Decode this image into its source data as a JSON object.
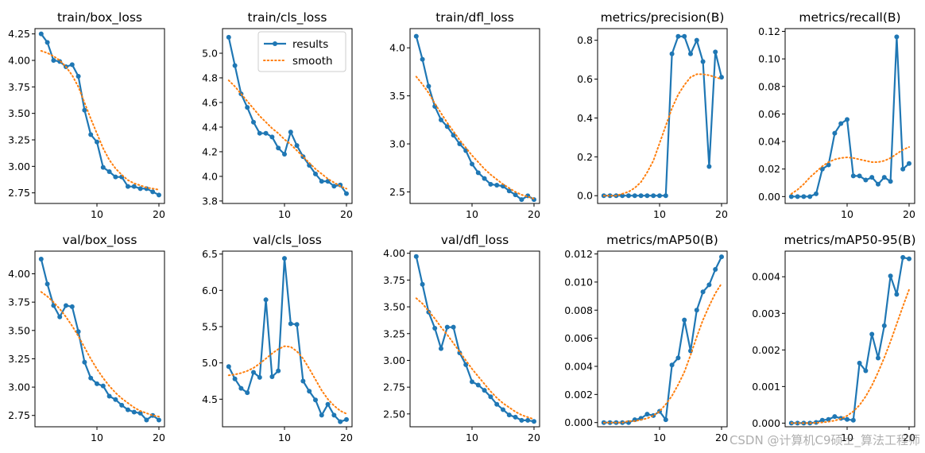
{
  "colors": {
    "results": "#1f77b4",
    "smooth": "#ff7f0e"
  },
  "legend": {
    "results_label": "results",
    "smooth_label": "smooth",
    "placement": "upper-right of train/cls_loss"
  },
  "watermark": "CSDN @计算机C9硕士_算法工程师",
  "chart_data": [
    {
      "type": "line",
      "title": "train/box_loss",
      "xlim": [
        0,
        20.9
      ],
      "ylim": [
        2.65,
        4.3
      ],
      "xticks": [
        10,
        20
      ],
      "yticks": [
        2.75,
        3.0,
        3.25,
        3.5,
        3.75,
        4.0,
        4.25
      ],
      "ytick_labels": [
        "2.75",
        "3.00",
        "3.25",
        "3.50",
        "3.75",
        "4.00",
        "4.25"
      ],
      "x": [
        1,
        2,
        3,
        4,
        5,
        6,
        7,
        8,
        9,
        10,
        11,
        12,
        13,
        14,
        15,
        16,
        17,
        18,
        19,
        20
      ],
      "results": [
        4.25,
        4.17,
        4.0,
        3.99,
        3.94,
        3.96,
        3.85,
        3.53,
        3.3,
        3.23,
        2.99,
        2.95,
        2.9,
        2.9,
        2.81,
        2.81,
        2.79,
        2.79,
        2.76,
        2.73
      ],
      "smooth": [
        4.09,
        4.07,
        4.04,
        4.0,
        3.94,
        3.86,
        3.75,
        3.6,
        3.45,
        3.31,
        3.17,
        3.06,
        2.98,
        2.92,
        2.87,
        2.84,
        2.82,
        2.8,
        2.79,
        2.78
      ]
    },
    {
      "type": "line",
      "title": "train/cls_loss",
      "xlim": [
        0,
        20.9
      ],
      "ylim": [
        3.78,
        5.2
      ],
      "xticks": [
        10,
        20
      ],
      "yticks": [
        3.8,
        4.0,
        4.2,
        4.4,
        4.6,
        4.8,
        5.0
      ],
      "ytick_labels": [
        "3.8",
        "4.0",
        "4.2",
        "4.4",
        "4.6",
        "4.8",
        "5.0"
      ],
      "legend": true,
      "x": [
        1,
        2,
        3,
        4,
        5,
        6,
        7,
        8,
        9,
        10,
        11,
        12,
        13,
        14,
        15,
        16,
        17,
        18,
        19,
        20
      ],
      "results": [
        5.13,
        4.9,
        4.67,
        4.56,
        4.44,
        4.35,
        4.35,
        4.32,
        4.23,
        4.18,
        4.36,
        4.25,
        4.16,
        4.09,
        4.02,
        3.96,
        3.96,
        3.92,
        3.93,
        3.86
      ],
      "smooth": [
        4.78,
        4.73,
        4.67,
        4.61,
        4.55,
        4.49,
        4.44,
        4.39,
        4.35,
        4.3,
        4.26,
        4.21,
        4.16,
        4.11,
        4.06,
        4.02,
        3.98,
        3.95,
        3.92,
        3.9
      ]
    },
    {
      "type": "line",
      "title": "train/dfl_loss",
      "xlim": [
        0,
        20.9
      ],
      "ylim": [
        2.38,
        4.2
      ],
      "xticks": [
        10,
        20
      ],
      "yticks": [
        2.5,
        3.0,
        3.5,
        4.0
      ],
      "ytick_labels": [
        "2.5",
        "3.0",
        "3.5",
        "4.0"
      ],
      "x": [
        1,
        2,
        3,
        4,
        5,
        6,
        7,
        8,
        9,
        10,
        11,
        12,
        13,
        14,
        15,
        16,
        17,
        18,
        19,
        20
      ],
      "results": [
        4.12,
        3.88,
        3.6,
        3.39,
        3.25,
        3.18,
        3.09,
        3.0,
        2.93,
        2.79,
        2.7,
        2.64,
        2.58,
        2.57,
        2.56,
        2.51,
        2.47,
        2.42,
        2.46,
        2.42
      ],
      "smooth": [
        3.7,
        3.62,
        3.53,
        3.42,
        3.32,
        3.22,
        3.13,
        3.04,
        2.96,
        2.88,
        2.81,
        2.74,
        2.68,
        2.63,
        2.58,
        2.54,
        2.5,
        2.47,
        2.45,
        2.43
      ]
    },
    {
      "type": "line",
      "title": "metrics/precision(B)",
      "xlim": [
        0,
        20.9
      ],
      "ylim": [
        -0.04,
        0.86
      ],
      "xticks": [
        10,
        20
      ],
      "yticks": [
        0.0,
        0.2,
        0.4,
        0.6,
        0.8
      ],
      "ytick_labels": [
        "0.0",
        "0.2",
        "0.4",
        "0.6",
        "0.8"
      ],
      "x": [
        1,
        2,
        3,
        4,
        5,
        6,
        7,
        8,
        9,
        10,
        11,
        12,
        13,
        14,
        15,
        16,
        17,
        18,
        19,
        20
      ],
      "results": [
        0,
        0,
        0,
        0,
        0,
        0,
        0,
        0,
        0,
        0,
        0,
        0.73,
        0.82,
        0.82,
        0.73,
        0.8,
        0.69,
        0.15,
        0.74,
        0.61
      ],
      "smooth": [
        0.0,
        0.0,
        0.0,
        0.01,
        0.02,
        0.04,
        0.07,
        0.12,
        0.18,
        0.27,
        0.36,
        0.45,
        0.52,
        0.57,
        0.61,
        0.625,
        0.625,
        0.62,
        0.61,
        0.6
      ]
    },
    {
      "type": "line",
      "title": "metrics/recall(B)",
      "xlim": [
        0,
        20.9
      ],
      "ylim": [
        -0.005,
        0.122
      ],
      "xticks": [
        10,
        20
      ],
      "yticks": [
        0.0,
        0.02,
        0.04,
        0.06,
        0.08,
        0.1,
        0.12
      ],
      "ytick_labels": [
        "0.00",
        "0.02",
        "0.04",
        "0.06",
        "0.08",
        "0.10",
        "0.12"
      ],
      "x": [
        1,
        2,
        3,
        4,
        5,
        6,
        7,
        8,
        9,
        10,
        11,
        12,
        13,
        14,
        15,
        16,
        17,
        18,
        19,
        20
      ],
      "results": [
        0,
        0,
        0,
        0,
        0.002,
        0.02,
        0.023,
        0.046,
        0.053,
        0.056,
        0.015,
        0.015,
        0.012,
        0.014,
        0.009,
        0.014,
        0.011,
        0.116,
        0.02,
        0.024
      ],
      "smooth": [
        0.002,
        0.005,
        0.009,
        0.014,
        0.018,
        0.022,
        0.025,
        0.027,
        0.028,
        0.0285,
        0.028,
        0.027,
        0.026,
        0.025,
        0.025,
        0.026,
        0.028,
        0.031,
        0.034,
        0.036
      ]
    },
    {
      "type": "line",
      "title": "val/box_loss",
      "xlim": [
        0,
        20.9
      ],
      "ylim": [
        2.65,
        4.2
      ],
      "xticks": [
        10,
        20
      ],
      "yticks": [
        2.75,
        3.0,
        3.25,
        3.5,
        3.75,
        4.0
      ],
      "ytick_labels": [
        "2.75",
        "3.00",
        "3.25",
        "3.50",
        "3.75",
        "4.00"
      ],
      "x": [
        1,
        2,
        3,
        4,
        5,
        6,
        7,
        8,
        9,
        10,
        11,
        12,
        13,
        14,
        15,
        16,
        17,
        18,
        19,
        20
      ],
      "results": [
        4.13,
        3.91,
        3.72,
        3.62,
        3.72,
        3.71,
        3.49,
        3.22,
        3.08,
        3.03,
        3.01,
        2.92,
        2.89,
        2.84,
        2.8,
        2.78,
        2.77,
        2.71,
        2.75,
        2.71
      ],
      "smooth": [
        3.84,
        3.8,
        3.75,
        3.69,
        3.62,
        3.54,
        3.45,
        3.35,
        3.25,
        3.16,
        3.08,
        3.01,
        2.95,
        2.9,
        2.86,
        2.82,
        2.79,
        2.77,
        2.75,
        2.74
      ]
    },
    {
      "type": "line",
      "title": "val/cls_loss",
      "xlim": [
        0,
        20.9
      ],
      "ylim": [
        4.12,
        6.54
      ],
      "xticks": [
        10,
        20
      ],
      "yticks": [
        4.5,
        5.0,
        5.5,
        6.0,
        6.5
      ],
      "ytick_labels": [
        "4.5",
        "5.0",
        "5.5",
        "6.0",
        "6.5"
      ],
      "x": [
        1,
        2,
        3,
        4,
        5,
        6,
        7,
        8,
        9,
        10,
        11,
        12,
        13,
        14,
        15,
        16,
        17,
        18,
        19,
        20
      ],
      "results": [
        4.95,
        4.78,
        4.65,
        4.59,
        4.87,
        4.8,
        5.87,
        4.81,
        4.89,
        6.44,
        5.54,
        5.53,
        4.75,
        4.61,
        4.49,
        4.28,
        4.43,
        4.28,
        4.19,
        4.22
      ],
      "smooth": [
        4.83,
        4.84,
        4.86,
        4.89,
        4.93,
        4.99,
        5.06,
        5.13,
        5.19,
        5.23,
        5.22,
        5.16,
        5.06,
        4.92,
        4.77,
        4.62,
        4.5,
        4.41,
        4.34,
        4.3
      ]
    },
    {
      "type": "line",
      "title": "val/dfl_loss",
      "xlim": [
        0,
        20.9
      ],
      "ylim": [
        2.38,
        4.02
      ],
      "xticks": [
        10,
        20
      ],
      "yticks": [
        2.5,
        2.75,
        3.0,
        3.25,
        3.5,
        3.75,
        4.0
      ],
      "ytick_labels": [
        "2.50",
        "2.75",
        "3.00",
        "3.25",
        "3.50",
        "3.75",
        "4.00"
      ],
      "x": [
        1,
        2,
        3,
        4,
        5,
        6,
        7,
        8,
        9,
        10,
        11,
        12,
        13,
        14,
        15,
        16,
        17,
        18,
        19,
        20
      ],
      "results": [
        3.97,
        3.71,
        3.45,
        3.3,
        3.11,
        3.31,
        3.31,
        3.07,
        2.96,
        2.8,
        2.77,
        2.72,
        2.66,
        2.59,
        2.54,
        2.49,
        2.47,
        2.44,
        2.44,
        2.43
      ],
      "smooth": [
        3.58,
        3.53,
        3.46,
        3.39,
        3.31,
        3.24,
        3.16,
        3.08,
        3.0,
        2.92,
        2.85,
        2.78,
        2.71,
        2.65,
        2.6,
        2.56,
        2.52,
        2.49,
        2.47,
        2.45
      ]
    },
    {
      "type": "line",
      "title": "metrics/mAP50(B)",
      "xlim": [
        0,
        20.9
      ],
      "ylim": [
        -0.0003,
        0.0122
      ],
      "xticks": [
        10,
        20
      ],
      "yticks": [
        0.0,
        0.002,
        0.004,
        0.006,
        0.008,
        0.01,
        0.012
      ],
      "ytick_labels": [
        "0.000",
        "0.002",
        "0.004",
        "0.006",
        "0.008",
        "0.010",
        "0.012"
      ],
      "x": [
        1,
        2,
        3,
        4,
        5,
        6,
        7,
        8,
        9,
        10,
        11,
        12,
        13,
        14,
        15,
        16,
        17,
        18,
        19,
        20
      ],
      "results": [
        0,
        0,
        0,
        0,
        0,
        0.0002,
        0.0003,
        0.0006,
        0.0005,
        0.0008,
        0.0002,
        0.0041,
        0.0046,
        0.0073,
        0.0051,
        0.008,
        0.0093,
        0.0098,
        0.0109,
        0.0118
      ],
      "smooth": [
        0,
        0,
        0,
        0,
        0.0001,
        0.0001,
        0.0002,
        0.0003,
        0.0005,
        0.0008,
        0.0013,
        0.0019,
        0.0027,
        0.0036,
        0.0048,
        0.0061,
        0.0073,
        0.0083,
        0.0092,
        0.0099
      ]
    },
    {
      "type": "line",
      "title": "metrics/mAP50-95(B)",
      "xlim": [
        0,
        20.9
      ],
      "ylim": [
        -0.0001,
        0.0047
      ],
      "xticks": [
        10,
        20
      ],
      "yticks": [
        0.0,
        0.001,
        0.002,
        0.003,
        0.004
      ],
      "ytick_labels": [
        "0.000",
        "0.001",
        "0.002",
        "0.003",
        "0.004"
      ],
      "x": [
        1,
        2,
        3,
        4,
        5,
        6,
        7,
        8,
        9,
        10,
        11,
        12,
        13,
        14,
        15,
        16,
        17,
        18,
        19,
        20
      ],
      "results": [
        0,
        0,
        0,
        0,
        2e-05,
        8e-05,
        0.0001,
        0.00018,
        0.00013,
        0.0001,
        8e-05,
        0.00164,
        0.00143,
        0.00243,
        0.00178,
        0.00266,
        0.00402,
        0.00352,
        0.00453,
        0.00449
      ],
      "smooth": [
        0,
        0,
        0,
        0,
        1e-05,
        2e-05,
        4e-05,
        7e-05,
        0.00012,
        0.0002,
        0.00032,
        0.00049,
        0.00073,
        0.00103,
        0.00139,
        0.00179,
        0.00223,
        0.00271,
        0.00319,
        0.00365
      ]
    }
  ]
}
